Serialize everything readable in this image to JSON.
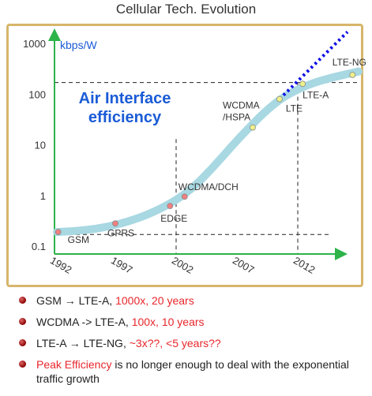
{
  "title": "Cellular Tech. Evolution",
  "chart_data": {
    "type": "line",
    "ylabel": "kbps/W",
    "yscale": "log",
    "ylim": [
      0.1,
      1000
    ],
    "xlim": [
      1992,
      2017
    ],
    "y_ticks": [
      {
        "label": "1000",
        "value": 1000
      },
      {
        "label": "100",
        "value": 100
      },
      {
        "label": "10",
        "value": 10
      },
      {
        "label": "1",
        "value": 1
      },
      {
        "label": "0.1",
        "value": 0.1
      }
    ],
    "x_ticks": [
      {
        "label": "1992",
        "value": 1992
      },
      {
        "label": "1997",
        "value": 1997
      },
      {
        "label": "2002",
        "value": 2002
      },
      {
        "label": "2007",
        "value": 2007
      },
      {
        "label": "2012",
        "value": 2012
      }
    ],
    "annotation": "Air Interface efficiency",
    "curve": [
      {
        "x": 1992.2,
        "y": 0.19
      },
      {
        "x": 1994,
        "y": 0.2
      },
      {
        "x": 1996,
        "y": 0.23
      },
      {
        "x": 1998,
        "y": 0.3
      },
      {
        "x": 2000,
        "y": 0.45
      },
      {
        "x": 2002,
        "y": 0.8
      },
      {
        "x": 2003.5,
        "y": 1.5
      },
      {
        "x": 2005,
        "y": 3.5
      },
      {
        "x": 2006.5,
        "y": 9
      },
      {
        "x": 2008,
        "y": 22
      },
      {
        "x": 2009.5,
        "y": 50
      },
      {
        "x": 2011,
        "y": 95
      },
      {
        "x": 2013,
        "y": 160
      },
      {
        "x": 2015,
        "y": 220
      },
      {
        "x": 2017,
        "y": 280
      }
    ],
    "points": [
      {
        "label": "GSM",
        "x": 1992.3,
        "y": 0.19,
        "color": "#f08080"
      },
      {
        "label": "GPRS",
        "x": 1997,
        "y": 0.28,
        "color": "#f08080"
      },
      {
        "label": "EDGE",
        "x": 2001.5,
        "y": 0.62,
        "color": "#f08080"
      },
      {
        "label": "WCDMA/DCH",
        "x": 2002.7,
        "y": 0.95,
        "color": "#f08080"
      },
      {
        "label": "WCDMA\n/HSPA",
        "x": 2008.3,
        "y": 22,
        "color": "#eef08a"
      },
      {
        "label": "LTE",
        "x": 2010.5,
        "y": 80,
        "color": "#eef08a"
      },
      {
        "label": "LTE-A",
        "x": 2012.4,
        "y": 160,
        "color": "#eef08a"
      },
      {
        "label": "LTE-NG",
        "x": 2016.5,
        "y": 240,
        "color": "#eef08a"
      }
    ],
    "projection": [
      {
        "x": 2010.5,
        "y": 80
      },
      {
        "x": 2018.5,
        "y": 1700
      }
    ],
    "reference_lines": {
      "horizontal": [
        0.17,
        170
      ],
      "vertical": [
        2002,
        2012
      ]
    },
    "colors": {
      "curve": "#a8d8e2",
      "axis": "#2db34a",
      "projection": "#1010e8",
      "annotation": "#1a5bd6"
    }
  },
  "bullets": [
    {
      "normal": "GSM → LTE-A, ",
      "red": "1000x, 20 years",
      "after": ""
    },
    {
      "normal": "WCDMA -> LTE-A, ",
      "red": "100x, 10 years",
      "after": ""
    },
    {
      "normal": "LTE-A → LTE-NG, ",
      "red": "~3x??, <5 years??",
      "after": ""
    },
    {
      "normal": "",
      "red": "Peak Efficiency",
      "after": " is no longer enough to deal with the exponential traffic growth"
    }
  ]
}
